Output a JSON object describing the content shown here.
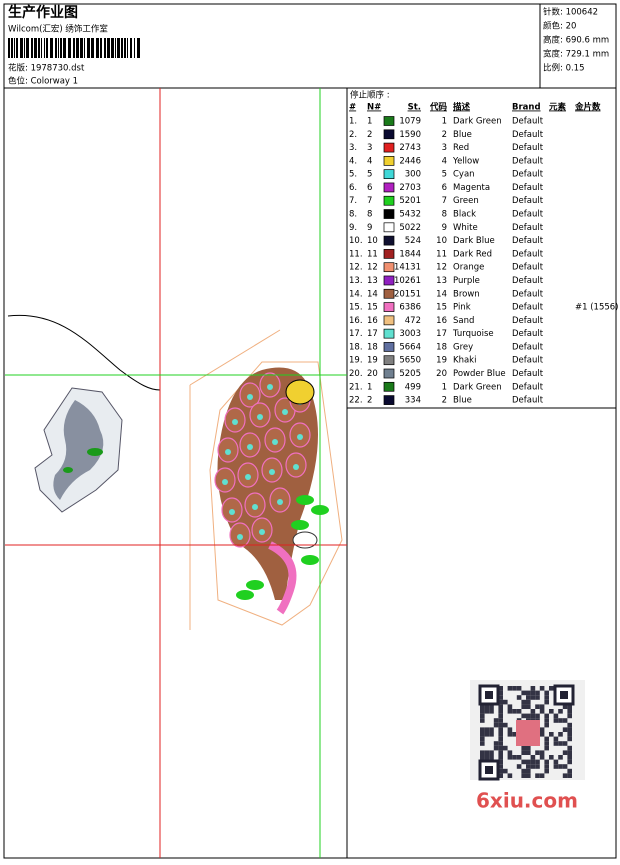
{
  "header": {
    "title": "生产作业图",
    "studio": "Wilcom(汇宏) 绣饰工作室",
    "design": "花版: 1978730.dst",
    "colorway": "色位: Colorway 1"
  },
  "stats": [
    "针数: 100642",
    "颜色: 20",
    "高度: 690.6 mm",
    "宽度: 729.1 mm",
    "比例: 0.15"
  ],
  "table": {
    "caption": "停止顺序 :",
    "columns": [
      "#",
      "N#",
      "St.",
      "代码",
      "描述",
      "Brand",
      "元素",
      "金片数"
    ],
    "rows": [
      {
        "no": "1.",
        "n": "1",
        "st": "1079",
        "code": "1",
        "desc": "Dark Green",
        "brand": "Default",
        "color": "#1a7a1a"
      },
      {
        "no": "2.",
        "n": "2",
        "st": "1590",
        "code": "2",
        "desc": "Blue",
        "brand": "Default",
        "color": "#0a0a30"
      },
      {
        "no": "3.",
        "n": "3",
        "st": "2743",
        "code": "3",
        "desc": "Red",
        "brand": "Default",
        "color": "#e02020"
      },
      {
        "no": "4.",
        "n": "4",
        "st": "2446",
        "code": "4",
        "desc": "Yellow",
        "brand": "Default",
        "color": "#f0d030"
      },
      {
        "no": "5.",
        "n": "5",
        "st": "300",
        "code": "5",
        "desc": "Cyan",
        "brand": "Default",
        "color": "#40d8d8"
      },
      {
        "no": "6.",
        "n": "6",
        "st": "2703",
        "code": "6",
        "desc": "Magenta",
        "brand": "Default",
        "color": "#b020c0"
      },
      {
        "no": "7.",
        "n": "7",
        "st": "5201",
        "code": "7",
        "desc": "Green",
        "brand": "Default",
        "color": "#20d020"
      },
      {
        "no": "8.",
        "n": "8",
        "st": "5432",
        "code": "8",
        "desc": "Black",
        "brand": "Default",
        "color": "#000000"
      },
      {
        "no": "9.",
        "n": "9",
        "st": "5022",
        "code": "9",
        "desc": "White",
        "brand": "Default",
        "color": "#ffffff"
      },
      {
        "no": "10.",
        "n": "10",
        "st": "524",
        "code": "10",
        "desc": "Dark Blue",
        "brand": "Default",
        "color": "#101030"
      },
      {
        "no": "11.",
        "n": "11",
        "st": "1844",
        "code": "11",
        "desc": "Dark Red",
        "brand": "Default",
        "color": "#a02020"
      },
      {
        "no": "12.",
        "n": "12",
        "st": "14131",
        "code": "12",
        "desc": "Orange",
        "brand": "Default",
        "color": "#f09070"
      },
      {
        "no": "13.",
        "n": "13",
        "st": "10261",
        "code": "13",
        "desc": "Purple",
        "brand": "Default",
        "color": "#9020c0"
      },
      {
        "no": "14.",
        "n": "14",
        "st": "20151",
        "code": "14",
        "desc": "Brown",
        "brand": "Default",
        "color": "#a06040"
      },
      {
        "no": "15.",
        "n": "15",
        "st": "6386",
        "code": "15",
        "desc": "Pink",
        "brand": "Default",
        "color": "#f070c0",
        "sequins": "#1 (1556)"
      },
      {
        "no": "16.",
        "n": "16",
        "st": "472",
        "code": "16",
        "desc": "Sand",
        "brand": "Default",
        "color": "#f0c080"
      },
      {
        "no": "17.",
        "n": "17",
        "st": "3003",
        "code": "17",
        "desc": "Turquoise",
        "brand": "Default",
        "color": "#60e0d0"
      },
      {
        "no": "18.",
        "n": "18",
        "st": "5664",
        "code": "18",
        "desc": "Grey",
        "brand": "Default",
        "color": "#6070a0"
      },
      {
        "no": "19.",
        "n": "19",
        "st": "5650",
        "code": "19",
        "desc": "Khaki",
        "brand": "Default",
        "color": "#808080"
      },
      {
        "no": "20.",
        "n": "20",
        "st": "5205",
        "code": "20",
        "desc": "Powder Blue",
        "brand": "Default",
        "color": "#708090"
      },
      {
        "no": "21.",
        "n": "1",
        "st": "499",
        "code": "1",
        "desc": "Dark Green",
        "brand": "Default",
        "color": "#1a7a1a"
      },
      {
        "no": "22.",
        "n": "2",
        "st": "334",
        "code": "2",
        "desc": "Blue",
        "brand": "Default",
        "color": "#0a0a30"
      }
    ]
  },
  "watermark": "6xiu.com"
}
